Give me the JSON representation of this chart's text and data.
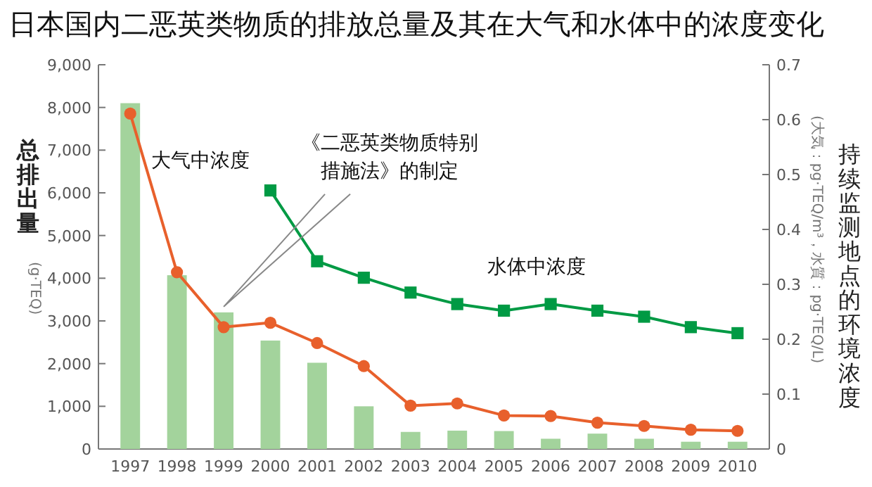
{
  "chart_data": {
    "type": "bar",
    "title": "日本国内二恶英类物质的排放总量及其在大气和水体中的浓度变化",
    "ylabel": "总排出量",
    "y2label": "持续监测地点的环境浓度",
    "annotations": [
      "(g·TEQ)",
      "(大気：pg·TEQ/m³，水質：pg·TEQ/L)",
      {
        "text": "《二恶英类物质特别措施法》的制定",
        "x": "1999",
        "y": 3200
      }
    ],
    "categories": [
      "1997",
      "1998",
      "1999",
      "2000",
      "2001",
      "2002",
      "2003",
      "2004",
      "2005",
      "2006",
      "2007",
      "2008",
      "2009",
      "2010"
    ],
    "series": [
      {
        "color": "#a3d39c",
        "values": [
          8100,
          4070,
          3200,
          2540,
          2020,
          1000,
          400,
          430,
          420,
          240,
          360,
          240,
          170,
          170
        ]
      },
      {
        "name": "大气中浓度",
        "type": "line",
        "axis": "y2",
        "marker": "circle",
        "color": "#e8602c",
        "values": [
          0.611,
          0.322,
          0.222,
          0.23,
          0.193,
          0.151,
          0.079,
          0.083,
          0.061,
          0.06,
          0.048,
          0.042,
          0.035,
          0.033
        ]
      },
      {
        "name": "水体中浓度",
        "type": "line",
        "axis": "y2",
        "marker": "square",
        "color": "#009a44",
        "values": [
          null,
          null,
          null,
          0.471,
          0.342,
          0.312,
          0.285,
          0.264,
          0.252,
          0.264,
          0.252,
          0.241,
          0.222,
          0.211
        ]
      }
    ],
    "ylim": [
      0,
      9000
    ],
    "yticks": [
      0,
      {
        "value": 1000,
        "label": "1,000"
      },
      {
        "value": 2000,
        "label": "2,000"
      },
      {
        "value": 3000,
        "label": "3,000"
      },
      {
        "value": 4000,
        "label": "4,000"
      },
      {
        "value": 5000,
        "label": "5,000"
      },
      {
        "value": 6000,
        "label": "6,000"
      },
      {
        "value": 7000,
        "label": "7,000"
      },
      {
        "value": 8000,
        "label": "8,000"
      },
      {
        "value": 9000,
        "label": "9,000"
      }
    ],
    "y2lim": [
      0,
      0.7
    ],
    "y2ticks": [
      0,
      0.1,
      0.2,
      0.3,
      0.4,
      0.5,
      0.6,
      0.7
    ],
    "grid": false
  }
}
